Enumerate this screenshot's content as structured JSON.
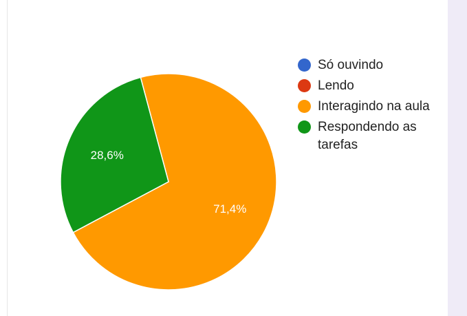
{
  "chart_data": {
    "type": "pie",
    "slices": [
      {
        "label": "Só ouvindo",
        "value": 0,
        "color": "#3366cc"
      },
      {
        "label": "Lendo",
        "value": 0,
        "color": "#dc3912"
      },
      {
        "label": "Interagindo na aula",
        "value": 71.4,
        "color": "#ff9900",
        "display": "71,4%"
      },
      {
        "label": "Respondendo as tarefas",
        "value": 28.6,
        "color": "#109618",
        "display": "28,6%"
      }
    ],
    "legend_placement": "right",
    "start_angle_deg": -15
  }
}
